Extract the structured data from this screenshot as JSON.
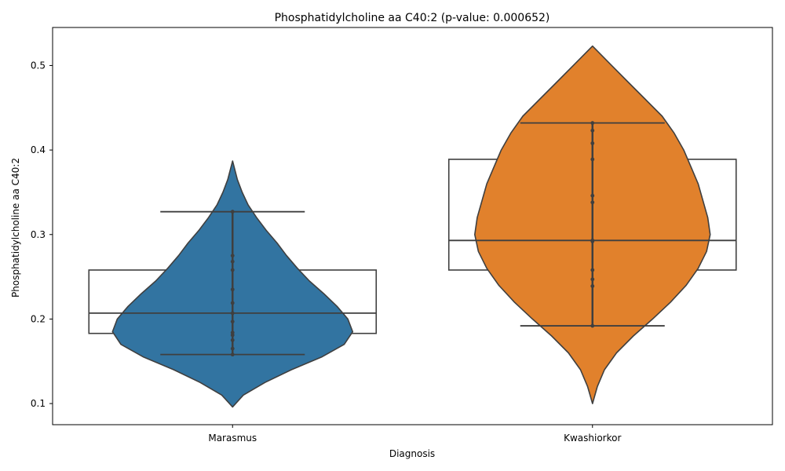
{
  "chart_data": {
    "type": "violin",
    "title": "Phosphatidylcholine aa C40:2 (p-value: 0.000652)",
    "xlabel": "Diagnosis",
    "ylabel": "Phosphatidylcholine aa C40:2",
    "ylim": [
      0.075,
      0.545
    ],
    "yticks": [
      0.1,
      0.2,
      0.3,
      0.4,
      0.5
    ],
    "ytick_labels": [
      "0.1",
      "0.2",
      "0.3",
      "0.4",
      "0.5"
    ],
    "categories": [
      "Marasmus",
      "Kwashiorkor"
    ],
    "grid": false,
    "series": [
      {
        "name": "Marasmus",
        "color": "#3274a1",
        "min": 0.158,
        "q1": 0.183,
        "median": 0.207,
        "q3": 0.258,
        "max": 0.327,
        "violin_extent": [
          0.096,
          0.387
        ],
        "points": [
          0.327,
          0.275,
          0.268,
          0.258,
          0.235,
          0.219,
          0.207,
          0.197,
          0.184,
          0.181,
          0.175,
          0.165,
          0.158
        ],
        "density": [
          [
            0.096,
            0.0
          ],
          [
            0.11,
            0.09
          ],
          [
            0.125,
            0.27
          ],
          [
            0.14,
            0.49
          ],
          [
            0.155,
            0.74
          ],
          [
            0.17,
            0.93
          ],
          [
            0.185,
            1.0
          ],
          [
            0.2,
            0.96
          ],
          [
            0.215,
            0.87
          ],
          [
            0.23,
            0.76
          ],
          [
            0.245,
            0.64
          ],
          [
            0.26,
            0.54
          ],
          [
            0.275,
            0.45
          ],
          [
            0.29,
            0.37
          ],
          [
            0.305,
            0.28
          ],
          [
            0.32,
            0.2
          ],
          [
            0.335,
            0.13
          ],
          [
            0.35,
            0.08
          ],
          [
            0.365,
            0.04
          ],
          [
            0.387,
            0.0
          ]
        ]
      },
      {
        "name": "Kwashiorkor",
        "color": "#e1812c",
        "min": 0.192,
        "q1": 0.258,
        "median": 0.293,
        "q3": 0.389,
        "max": 0.432,
        "violin_extent": [
          0.1,
          0.523
        ],
        "points": [
          0.432,
          0.423,
          0.408,
          0.389,
          0.346,
          0.338,
          0.293,
          0.292,
          0.258,
          0.247,
          0.239,
          0.192
        ],
        "density": [
          [
            0.1,
            0.0
          ],
          [
            0.12,
            0.04
          ],
          [
            0.14,
            0.1
          ],
          [
            0.16,
            0.2
          ],
          [
            0.18,
            0.34
          ],
          [
            0.2,
            0.5
          ],
          [
            0.22,
            0.65
          ],
          [
            0.24,
            0.78
          ],
          [
            0.26,
            0.88
          ],
          [
            0.28,
            0.95
          ],
          [
            0.3,
            0.98
          ],
          [
            0.32,
            0.96
          ],
          [
            0.34,
            0.92
          ],
          [
            0.36,
            0.88
          ],
          [
            0.38,
            0.82
          ],
          [
            0.4,
            0.76
          ],
          [
            0.42,
            0.68
          ],
          [
            0.44,
            0.58
          ],
          [
            0.46,
            0.44
          ],
          [
            0.48,
            0.3
          ],
          [
            0.5,
            0.16
          ],
          [
            0.523,
            0.0
          ]
        ]
      }
    ]
  }
}
